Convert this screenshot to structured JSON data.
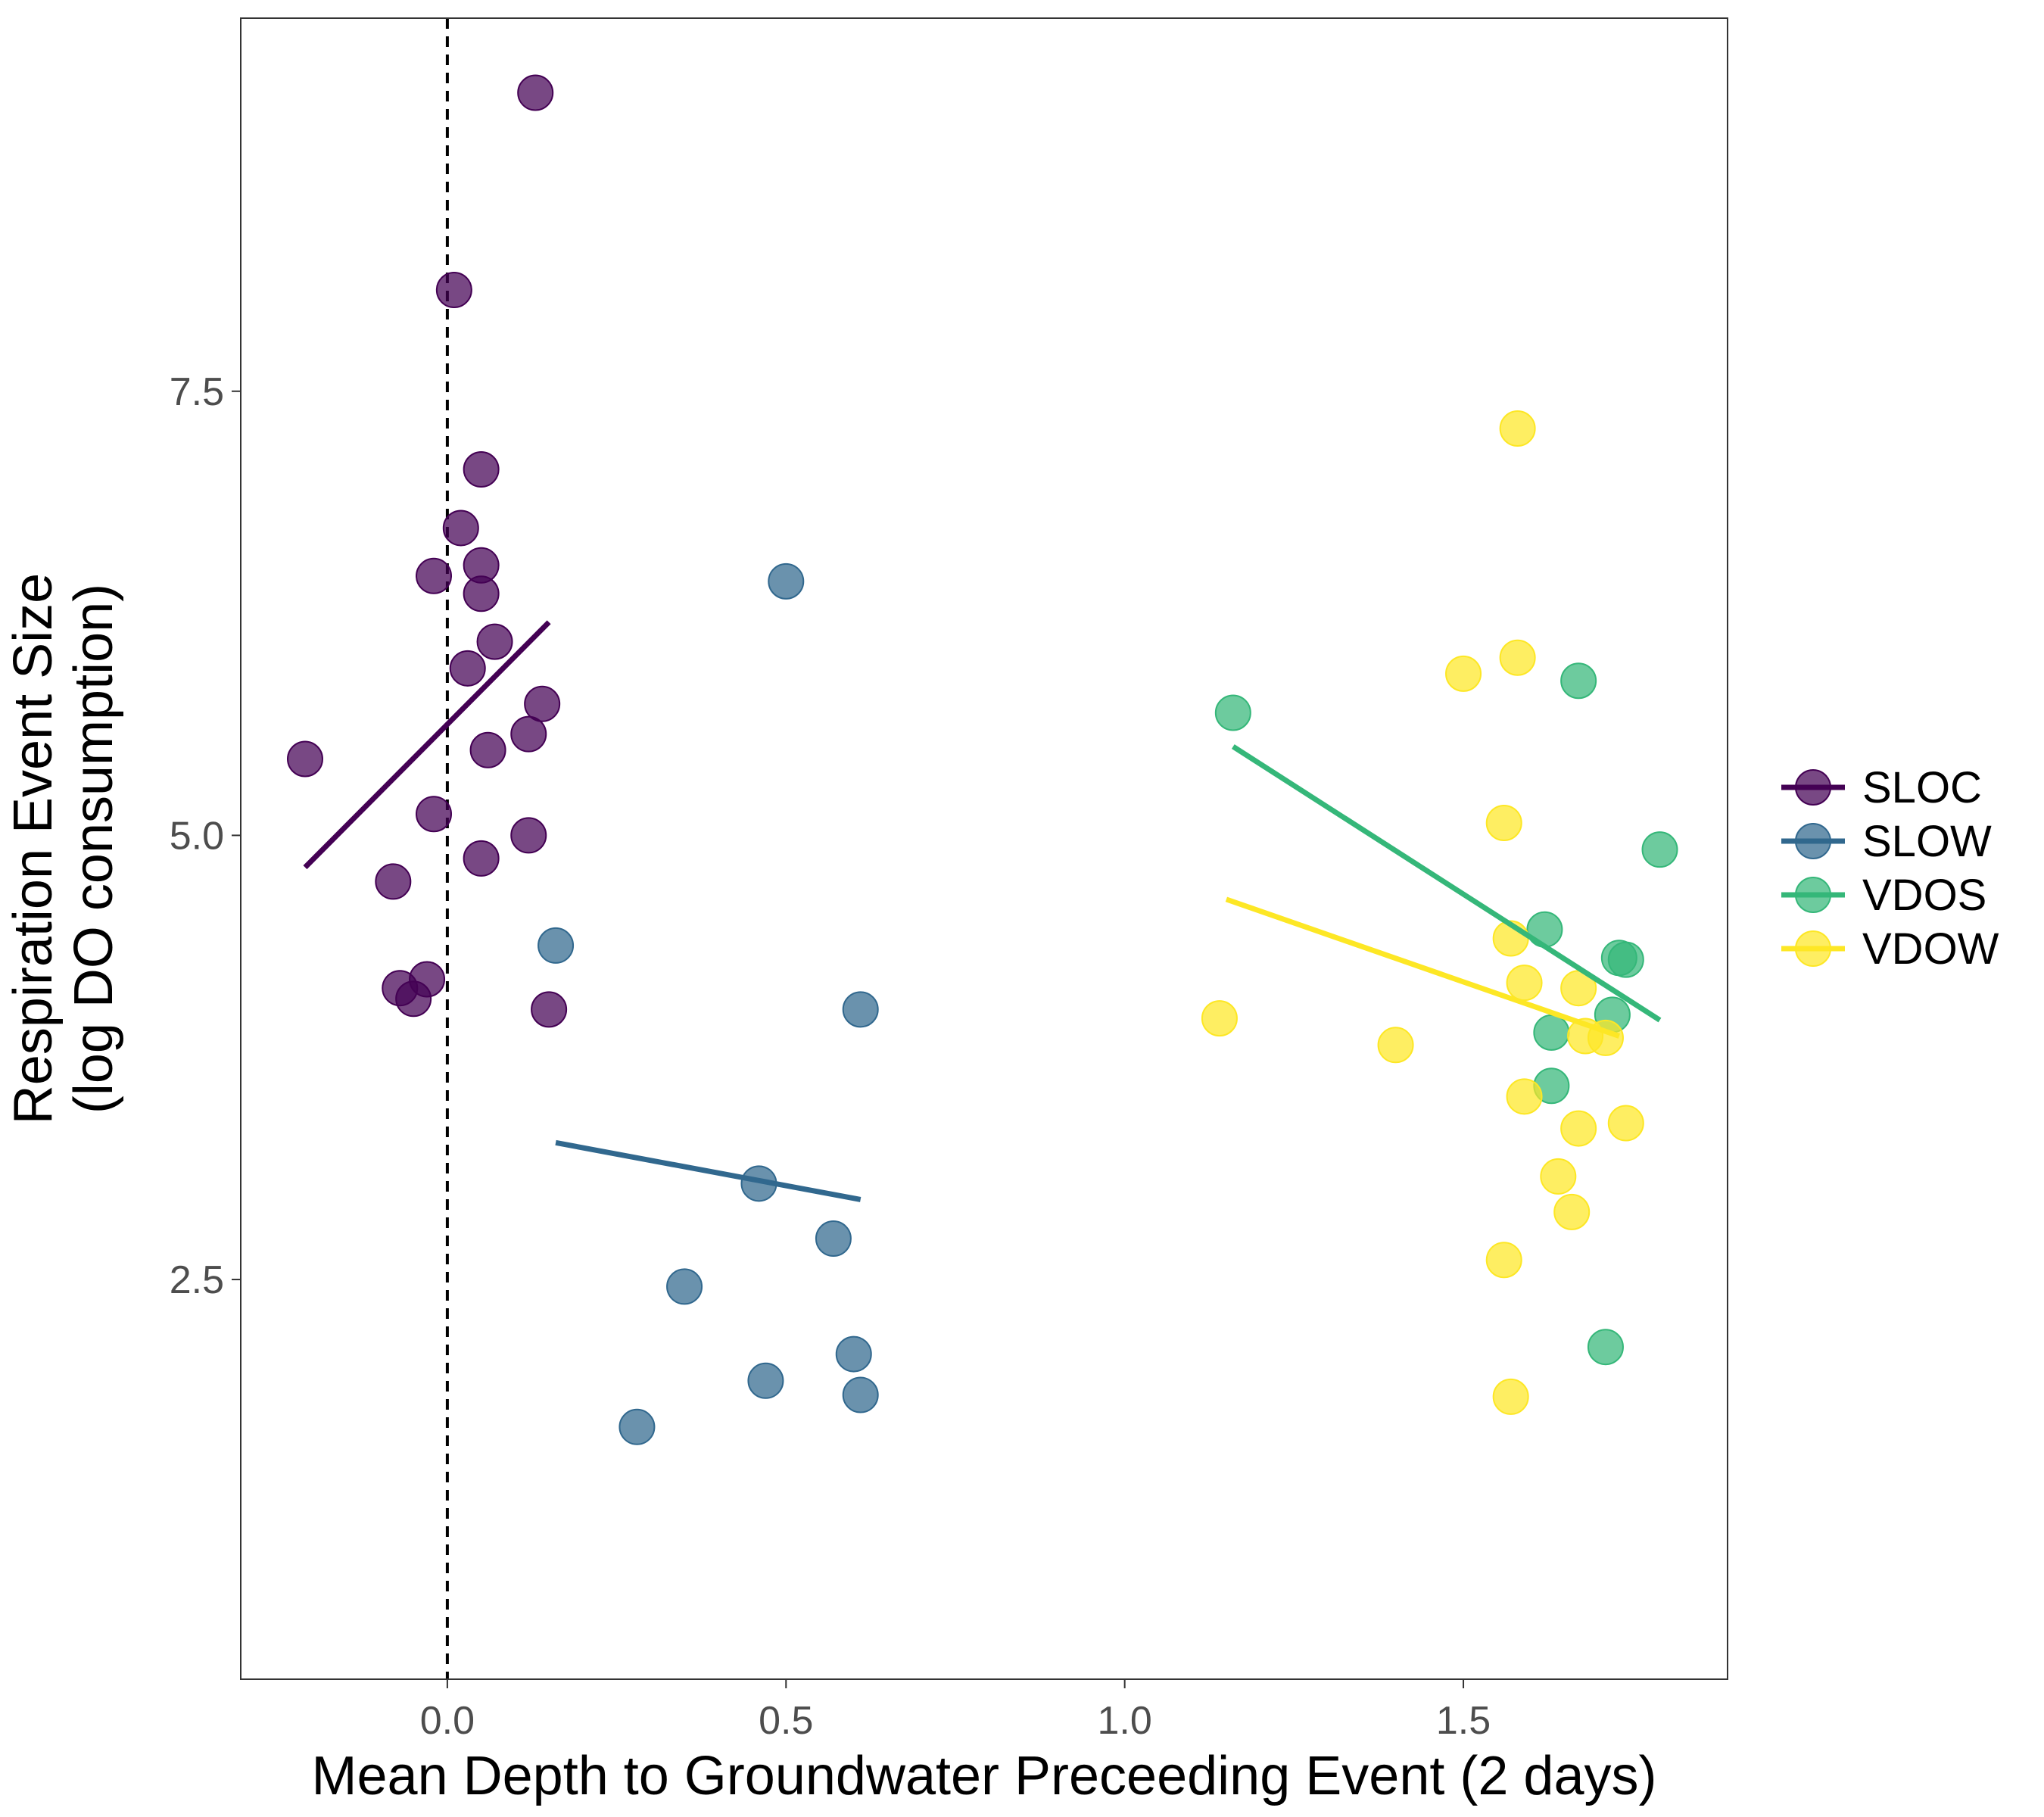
{
  "chart_data": {
    "type": "scatter",
    "title": "",
    "xlabel": "Mean Depth to Groundwater Preceeding Event (2 days)",
    "ylabel_lines": [
      "Respiration Event Size",
      "(log DO consumption)"
    ],
    "xlim": [
      -0.305,
      1.89
    ],
    "ylim": [
      0.25,
      9.6
    ],
    "x_ticks": [
      0.0,
      0.5,
      1.0,
      1.5
    ],
    "x_tick_labels": [
      "0.0",
      "0.5",
      "1.0",
      "1.5"
    ],
    "y_ticks": [
      2.5,
      5.0,
      7.5
    ],
    "y_tick_labels": [
      "2.5",
      "5.0",
      "7.5"
    ],
    "grid": false,
    "reference_line": {
      "x": 0.0,
      "style": "dashed"
    },
    "legend": {
      "placement": "right"
    },
    "series": [
      {
        "name": "SLOC",
        "color": "#440154",
        "points": [
          [
            0.13,
            9.18
          ],
          [
            0.01,
            8.07
          ],
          [
            0.05,
            7.06
          ],
          [
            0.02,
            6.73
          ],
          [
            0.05,
            6.52
          ],
          [
            -0.02,
            6.46
          ],
          [
            0.05,
            6.36
          ],
          [
            0.07,
            6.09
          ],
          [
            0.03,
            5.94
          ],
          [
            0.14,
            5.74
          ],
          [
            -0.21,
            5.43
          ],
          [
            0.12,
            5.57
          ],
          [
            0.06,
            5.48
          ],
          [
            -0.02,
            5.12
          ],
          [
            0.12,
            5.0
          ],
          [
            0.05,
            4.87
          ],
          [
            -0.08,
            4.74
          ],
          [
            -0.07,
            4.14
          ],
          [
            -0.03,
            4.19
          ],
          [
            -0.05,
            4.08
          ],
          [
            0.15,
            4.02
          ]
        ],
        "trend": [
          [
            -0.21,
            4.82
          ],
          [
            0.15,
            6.2
          ]
        ]
      },
      {
        "name": "SLOW",
        "color": "#31688E",
        "points": [
          [
            0.5,
            6.43
          ],
          [
            0.16,
            4.38
          ],
          [
            0.61,
            4.02
          ],
          [
            0.46,
            3.04
          ],
          [
            0.57,
            2.73
          ],
          [
            0.35,
            2.46
          ],
          [
            0.6,
            2.08
          ],
          [
            0.47,
            1.93
          ],
          [
            0.61,
            1.85
          ],
          [
            0.28,
            1.67
          ]
        ],
        "trend": [
          [
            0.16,
            3.27
          ],
          [
            0.61,
            2.95
          ]
        ]
      },
      {
        "name": "VDOS",
        "color": "#35B779",
        "points": [
          [
            1.16,
            5.69
          ],
          [
            1.67,
            5.87
          ],
          [
            1.79,
            4.92
          ],
          [
            1.62,
            4.47
          ],
          [
            1.74,
            4.3
          ],
          [
            1.73,
            4.31
          ],
          [
            1.72,
            3.99
          ],
          [
            1.63,
            3.89
          ],
          [
            1.63,
            3.59
          ],
          [
            1.71,
            2.12
          ]
        ],
        "trend": [
          [
            1.16,
            5.5
          ],
          [
            1.79,
            3.96
          ]
        ]
      },
      {
        "name": "VDOW",
        "color": "#FDE725",
        "points": [
          [
            1.58,
            7.29
          ],
          [
            1.58,
            6.0
          ],
          [
            1.5,
            5.91
          ],
          [
            1.56,
            5.07
          ],
          [
            1.57,
            4.42
          ],
          [
            1.59,
            4.17
          ],
          [
            1.67,
            4.14
          ],
          [
            1.14,
            3.97
          ],
          [
            1.4,
            3.82
          ],
          [
            1.68,
            3.87
          ],
          [
            1.71,
            3.86
          ],
          [
            1.59,
            3.53
          ],
          [
            1.74,
            3.38
          ],
          [
            1.67,
            3.35
          ],
          [
            1.64,
            3.08
          ],
          [
            1.66,
            2.88
          ],
          [
            1.56,
            2.61
          ],
          [
            1.57,
            1.84
          ]
        ],
        "trend": [
          [
            1.15,
            4.64
          ],
          [
            1.73,
            3.87
          ]
        ]
      }
    ]
  }
}
